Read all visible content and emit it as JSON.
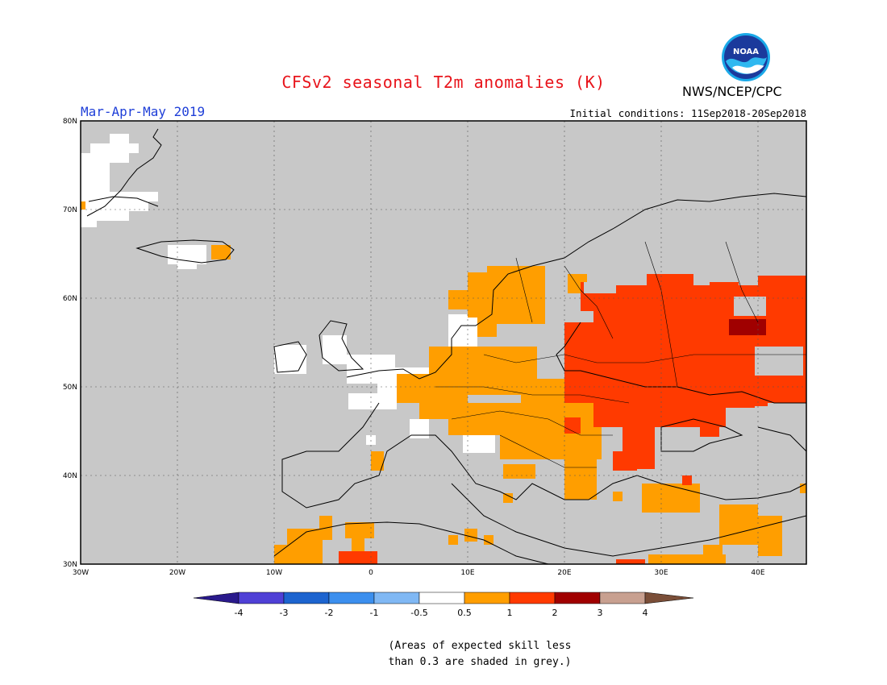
{
  "title": "CFSv2 seasonal T2m anomalies (K)",
  "season": "Mar-Apr-May 2019",
  "initial_conditions": "Initial conditions: 11Sep2018-20Sep2018",
  "organization": "NWS/NCEP/CPC",
  "logo_icon": "noaa-logo-icon",
  "note": "(Areas of expected skill less\nthan 0.3 are shaded in grey.)",
  "map": {
    "lon_range": [
      -30,
      45
    ],
    "lat_range": [
      30,
      80
    ],
    "lat_ticks": [
      "30N",
      "40N",
      "50N",
      "60N",
      "70N",
      "80N"
    ],
    "lon_ticks": [
      "30W",
      "20W",
      "10W",
      "0",
      "10E",
      "20E",
      "30E",
      "40E"
    ],
    "grey_color": "#c8c8c8"
  },
  "legend": {
    "labels": [
      "-4",
      "-3",
      "-2",
      "-1",
      "-0.5",
      "0.5",
      "1",
      "2",
      "3",
      "4"
    ],
    "colors": [
      "#2a1a8c",
      "#4f40d6",
      "#1d64cf",
      "#3c8fee",
      "#80b8f4",
      "#ffffff",
      "#ff9e00",
      "#ff3a00",
      "#a00000",
      "#c8a090",
      "#7a4e38"
    ]
  }
}
